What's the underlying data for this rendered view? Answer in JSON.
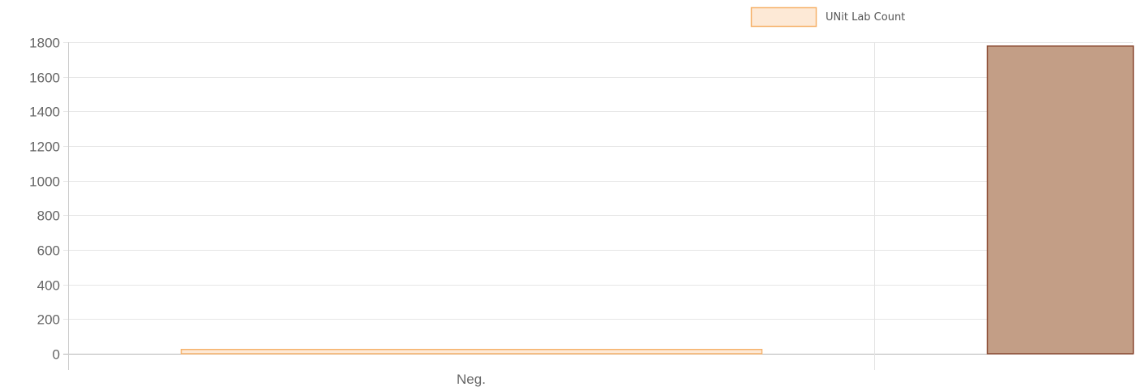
{
  "chart_data": {
    "type": "bar",
    "title": "",
    "xlabel": "",
    "ylabel": "",
    "categories": [
      "Neg.",
      ""
    ],
    "ylim": [
      0,
      1800
    ],
    "yticks": [
      0,
      200,
      400,
      600,
      800,
      1000,
      1200,
      1400,
      1600,
      1800
    ],
    "grid": true,
    "legend_position": "top",
    "series": [
      {
        "name": "UNit Lab Count",
        "values": [
          27,
          1780
        ],
        "fill_colors": [
          "#fde9d6",
          "#c39e86"
        ],
        "border_colors": [
          "#f6b26b",
          "#8b4a32"
        ]
      }
    ]
  }
}
